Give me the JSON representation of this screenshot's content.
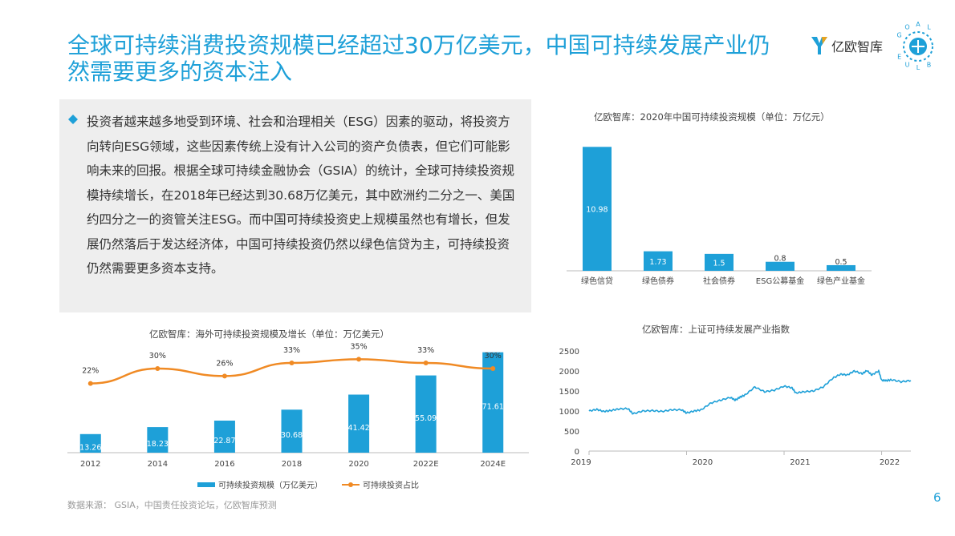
{
  "title": "全球可持续消费投资规模已经超过30万亿美元，中国可持续发展产业仍然需要更多的资本注入",
  "logo_text": "亿欧智库",
  "badge_letters": [
    "G",
    "O",
    "A",
    "L",
    "B",
    "L",
    "U",
    "E"
  ],
  "paragraph": "投资者越来越多地受到环境、社会和治理相关（ESG）因素的驱动，将投资方向转向ESG领域，这些因素传统上没有计入公司的资产负债表，但它们可能影响未来的回报。根据全球可持续金融协会（GSIA）的统计，全球可持续投资规模持续增长，在2018年已经达到30.68万亿美元，其中欧洲约二分之一、美国约四分之一的资管关注ESG。而中国可持续投资史上规模虽然也有增长，但发展仍然落后于发达经济体，中国可持续投资仍然以绿色信贷为主，可持续投资仍然需要更多资本支持。",
  "source": "数据来源： GSIA，中国责任投资论坛，亿欧智库预测",
  "page_number": "6",
  "colors": {
    "accent": "#1ea0d8",
    "line": "#f08a24"
  },
  "chart_data": [
    {
      "type": "bar",
      "title": "亿欧智库：2020年中国可持续投资规模（单位：万亿元）",
      "categories": [
        "绿色信贷",
        "绿色债券",
        "社会债券",
        "ESG公募基金",
        "绿色产业基金"
      ],
      "values": [
        10.98,
        1.73,
        1.5,
        0.8,
        0.5
      ],
      "labels": [
        "10.98",
        "1.73",
        "1.5",
        "0.8",
        "0.5"
      ],
      "ylim": [
        0,
        11.5
      ]
    },
    {
      "type": "bar+line",
      "title": "亿欧智库：海外可持续投资规模及增长（单位：万亿美元）",
      "categories": [
        "2012",
        "2014",
        "2016",
        "2018",
        "2020",
        "2022E",
        "2024E"
      ],
      "series": [
        {
          "name": "可持续投资规模（万亿美元）",
          "type": "bar",
          "values": [
            13.26,
            18.23,
            22.87,
            30.68,
            41.42,
            55.09,
            71.61
          ],
          "labels": [
            "13.26",
            "18.23",
            "22.87",
            "30.68",
            "41.42",
            "55.09",
            "71.61"
          ]
        },
        {
          "name": "可持续投资占比",
          "type": "line",
          "values": [
            22,
            30,
            26,
            33,
            35,
            33,
            30
          ],
          "labels": [
            "22%",
            "30%",
            "26%",
            "33%",
            "35%",
            "33%",
            "30%"
          ]
        }
      ],
      "ylim_bar": [
        0,
        80
      ],
      "ylim_line": [
        -15,
        45
      ],
      "legend": "bottom"
    },
    {
      "type": "line",
      "title": "亿欧智库：上证可持续发展产业指数",
      "x_ticks": [
        "2019",
        "2020",
        "2021",
        "2022"
      ],
      "y_ticks": [
        "2500",
        "2000",
        "1500",
        "1000",
        "500",
        "0"
      ],
      "ylim": [
        0,
        2500
      ],
      "x_range": [
        2019.0,
        2022.3
      ],
      "series": [
        {
          "x": [
            2019.0,
            2019.08,
            2019.15,
            2019.22,
            2019.3,
            2019.4,
            2019.45,
            2019.55,
            2019.65,
            2019.75,
            2019.85,
            2019.95,
            2020.0,
            2020.08,
            2020.15,
            2020.25,
            2020.35,
            2020.45,
            2020.5,
            2020.55,
            2020.6,
            2020.7,
            2020.8,
            2020.9,
            2021.0,
            2021.08,
            2021.12,
            2021.2,
            2021.3,
            2021.4,
            2021.5,
            2021.58,
            2021.65,
            2021.72,
            2021.8,
            2021.85,
            2021.9,
            2021.97,
            2022.0,
            2022.05,
            2022.1,
            2022.2,
            2022.3
          ],
          "y": [
            1000,
            1040,
            990,
            1010,
            1050,
            1060,
            930,
            1000,
            1010,
            990,
            1030,
            1030,
            950,
            1000,
            1030,
            1200,
            1270,
            1340,
            1270,
            1350,
            1400,
            1600,
            1480,
            1520,
            1620,
            1580,
            1450,
            1480,
            1500,
            1600,
            1820,
            1920,
            1900,
            2000,
            1930,
            2010,
            1900,
            2000,
            1770,
            1760,
            1780,
            1730,
            1760
          ]
        }
      ]
    }
  ]
}
